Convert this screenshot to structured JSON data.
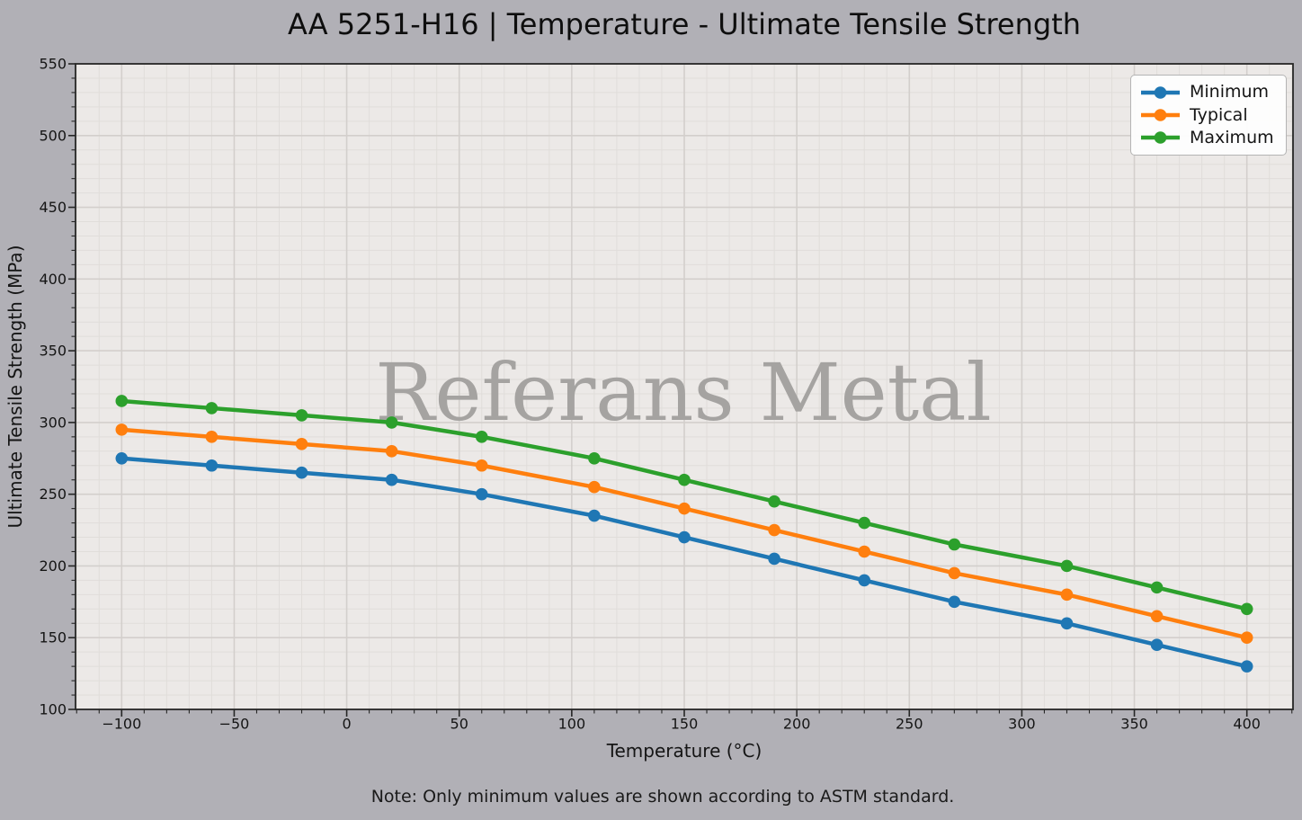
{
  "chart_data": {
    "type": "line",
    "title": "AA 5251-H16 | Temperature - Ultimate Tensile Strength",
    "xlabel": "Temperature (°C)",
    "ylabel": "Ultimate Tensile Strength (MPa)",
    "watermark": "Referans Metal",
    "note": "Note: Only minimum values are shown according to ASTM standard.",
    "x": [
      -100,
      -60,
      -20,
      20,
      60,
      110,
      150,
      190,
      230,
      270,
      320,
      360,
      400
    ],
    "series": [
      {
        "name": "Minimum",
        "color": "#1f77b4",
        "values": [
          275,
          270,
          265,
          260,
          250,
          235,
          220,
          205,
          190,
          175,
          160,
          145,
          130
        ]
      },
      {
        "name": "Typical",
        "color": "#ff7f0e",
        "values": [
          295,
          290,
          285,
          280,
          270,
          255,
          240,
          225,
          210,
          195,
          180,
          165,
          150
        ]
      },
      {
        "name": "Maximum",
        "color": "#2ca02c",
        "values": [
          315,
          310,
          305,
          300,
          290,
          275,
          260,
          245,
          230,
          215,
          200,
          185,
          170
        ]
      }
    ],
    "xticks": [
      -100,
      -50,
      0,
      50,
      100,
      150,
      200,
      250,
      300,
      350,
      400
    ],
    "yticks": [
      100,
      150,
      200,
      250,
      300,
      350,
      400,
      450,
      500,
      550
    ],
    "xlim": [
      -120.5,
      420.5
    ],
    "ylim": [
      100,
      550
    ],
    "minor_tick_step": 10,
    "grid": true,
    "legend_position": "upper right",
    "colors": {
      "figure_background": "#b1b0b6",
      "plot_background": "#ece9e7",
      "grid_major": "#d3cfcc",
      "grid_minor": "#e0ddda",
      "spine": "#262626",
      "tick_label": "#151515",
      "watermark": "#a5a3a1"
    }
  }
}
